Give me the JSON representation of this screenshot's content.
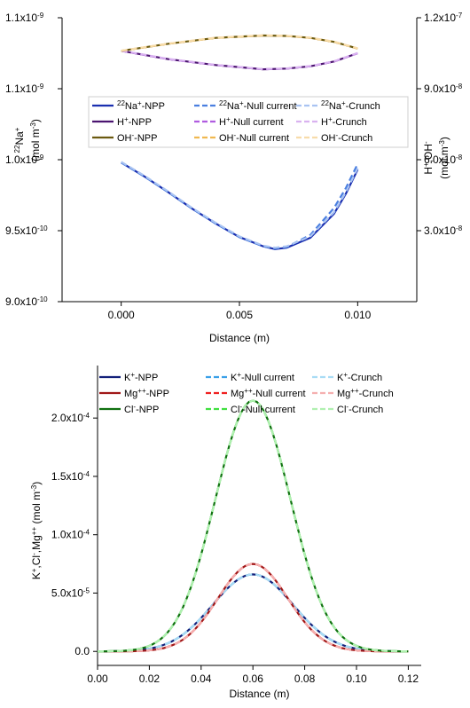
{
  "chart_data": [
    {
      "type": "line",
      "xlabel": "Distance (m)",
      "ylabel_left": [
        "22Na+",
        "(mol m-3)"
      ],
      "ylabel_right": [
        "H+,OH-",
        "(mol m-3)"
      ],
      "xlim": [
        -0.0025,
        0.0125
      ],
      "ylim_left": [
        9e-10,
        1.1e-09
      ],
      "ylim_right": [
        0,
        1.2e-07
      ],
      "x_ticks": [
        0.0,
        0.005,
        0.01
      ],
      "x_tick_labels": [
        "0.000",
        "0.005",
        "0.010"
      ],
      "y_ticks_left": [
        9e-10,
        9.5e-10,
        1e-09,
        1.05e-09,
        1.1e-09
      ],
      "y_tick_labels_left": [
        "9.0x10-10",
        "9.5x10-10",
        "1.0x10-9",
        "1.1x10-9",
        "1.1x10-9"
      ],
      "y_ticks_right": [
        3e-08,
        6e-08,
        9e-08,
        1.2e-07
      ],
      "y_tick_labels_right": [
        "3.0x10-8",
        "6.0x10-8",
        "9.0x10-8",
        "1.2x10-7"
      ],
      "legend_position": "upper-middle",
      "series": [
        {
          "name": "22Na+-NPP",
          "color": "#1a2fb0",
          "style": "solid",
          "axis": "left",
          "x": [
            0,
            0.001,
            0.002,
            0.003,
            0.004,
            0.005,
            0.006,
            0.0065,
            0.007,
            0.008,
            0.009,
            0.0095,
            0.01
          ],
          "y": [
            9.98e-10,
            9.88e-10,
            9.77e-10,
            9.655e-10,
            9.55e-10,
            9.455e-10,
            9.39e-10,
            9.37e-10,
            9.38e-10,
            9.45e-10,
            9.62e-10,
            9.76e-10,
            9.93e-10
          ]
        },
        {
          "name": "22Na+-Null current",
          "color": "#4a7fe0",
          "style": "dashed",
          "axis": "left",
          "x": [
            0,
            0.001,
            0.002,
            0.003,
            0.004,
            0.005,
            0.006,
            0.0065,
            0.007,
            0.008,
            0.009,
            0.0095,
            0.01
          ],
          "y": [
            9.98e-10,
            9.88e-10,
            9.77e-10,
            9.655e-10,
            9.55e-10,
            9.455e-10,
            9.39e-10,
            9.375e-10,
            9.385e-10,
            9.47e-10,
            9.66e-10,
            9.8e-10,
            9.97e-10
          ]
        },
        {
          "name": "22Na+-Crunch",
          "color": "#a9c3f2",
          "style": "dashed",
          "axis": "left",
          "x": [
            0,
            0.001,
            0.002,
            0.003,
            0.004,
            0.005,
            0.006,
            0.0065,
            0.007,
            0.008,
            0.009,
            0.0095,
            0.01
          ],
          "y": [
            9.985e-10,
            9.885e-10,
            9.775e-10,
            9.66e-10,
            9.555e-10,
            9.46e-10,
            9.395e-10,
            9.38e-10,
            9.39e-10,
            9.46e-10,
            9.63e-10,
            9.77e-10,
            9.94e-10
          ]
        },
        {
          "name": "H+-NPP",
          "color": "#4b1470",
          "style": "solid",
          "axis": "right",
          "x": [
            0,
            0.002,
            0.004,
            0.006,
            0.007,
            0.008,
            0.009,
            0.01
          ],
          "y": [
            1.06e-07,
            1.025e-07,
            1e-07,
            9.82e-08,
            9.85e-08,
            9.95e-08,
            1.015e-07,
            1.05e-07
          ]
        },
        {
          "name": "H+-Null current",
          "color": "#b05ce0",
          "style": "dashed",
          "axis": "right",
          "x": [
            0,
            0.002,
            0.004,
            0.006,
            0.007,
            0.008,
            0.009,
            0.01
          ],
          "y": [
            1.06e-07,
            1.025e-07,
            1e-07,
            9.82e-08,
            9.85e-08,
            9.95e-08,
            1.015e-07,
            1.05e-07
          ]
        },
        {
          "name": "H+-Crunch",
          "color": "#d9b2f0",
          "style": "dashed",
          "axis": "right",
          "x": [
            0,
            0.002,
            0.004,
            0.006,
            0.007,
            0.008,
            0.009,
            0.01
          ],
          "y": [
            1.061e-07,
            1.026e-07,
            1.001e-07,
            9.83e-08,
            9.86e-08,
            9.96e-08,
            1.016e-07,
            1.051e-07
          ]
        },
        {
          "name": "OH--NPP",
          "color": "#6b5a10",
          "style": "solid",
          "axis": "right",
          "x": [
            0,
            0.002,
            0.004,
            0.006,
            0.007,
            0.008,
            0.009,
            0.01
          ],
          "y": [
            1.06e-07,
            1.09e-07,
            1.115e-07,
            1.125e-07,
            1.123e-07,
            1.115e-07,
            1.098e-07,
            1.07e-07
          ]
        },
        {
          "name": "OH--Null current",
          "color": "#f0b850",
          "style": "dashed",
          "axis": "right",
          "x": [
            0,
            0.002,
            0.004,
            0.006,
            0.007,
            0.008,
            0.009,
            0.01
          ],
          "y": [
            1.06e-07,
            1.09e-07,
            1.115e-07,
            1.125e-07,
            1.123e-07,
            1.115e-07,
            1.098e-07,
            1.07e-07
          ]
        },
        {
          "name": "OH--Crunch",
          "color": "#f7dcaa",
          "style": "dashed",
          "axis": "right",
          "x": [
            0,
            0.002,
            0.004,
            0.006,
            0.007,
            0.008,
            0.009,
            0.01
          ],
          "y": [
            1.061e-07,
            1.091e-07,
            1.116e-07,
            1.126e-07,
            1.124e-07,
            1.116e-07,
            1.099e-07,
            1.071e-07
          ]
        }
      ]
    },
    {
      "type": "line",
      "xlabel": "Distance (m)",
      "ylabel": "K+,Cl-,Mg++ (mol m-3)",
      "xlim": [
        0,
        0.125
      ],
      "ylim": [
        -1.2e-05,
        0.000245
      ],
      "x_ticks": [
        0,
        0.02,
        0.04,
        0.06,
        0.08,
        0.1,
        0.12
      ],
      "x_tick_labels": [
        "0.00",
        "0.02",
        "0.04",
        "0.06",
        "0.08",
        "0.10",
        "0.12"
      ],
      "y_ticks": [
        0,
        5e-05,
        0.0001,
        0.00015,
        0.0002
      ],
      "y_tick_labels": [
        "0.0",
        "5.0x10-5",
        "1.0x10-4",
        "1.5x10-4",
        "2.0x10-4"
      ],
      "legend_position": "top",
      "series": [
        {
          "name": "K+-NPP",
          "color": "#13207a",
          "style": "solid",
          "peak": 6.6e-05,
          "center": 0.06,
          "width": 0.0155
        },
        {
          "name": "K+-Null current",
          "color": "#3aa0e8",
          "style": "dashed",
          "peak": 6.6e-05,
          "center": 0.06,
          "width": 0.0155
        },
        {
          "name": "K+-Crunch",
          "color": "#a8dcf5",
          "style": "dashed",
          "peak": 6.6e-05,
          "center": 0.06,
          "width": 0.0155
        },
        {
          "name": "Mg++-NPP",
          "color": "#a01818",
          "style": "solid",
          "peak": 7.5e-05,
          "center": 0.06,
          "width": 0.0135
        },
        {
          "name": "Mg++-Null current",
          "color": "#f02020",
          "style": "dashed",
          "peak": 7.5e-05,
          "center": 0.06,
          "width": 0.0135
        },
        {
          "name": "Mg++-Crunch",
          "color": "#f5b0b0",
          "style": "dashed",
          "peak": 7.5e-05,
          "center": 0.06,
          "width": 0.0135
        },
        {
          "name": "Cl--NPP",
          "color": "#107010",
          "style": "solid",
          "peak": 0.000215,
          "center": 0.06,
          "width": 0.0145
        },
        {
          "name": "Cl--Null current",
          "color": "#40e040",
          "style": "dashed",
          "peak": 0.000215,
          "center": 0.06,
          "width": 0.0145
        },
        {
          "name": "Cl--Crunch",
          "color": "#b0f0b0",
          "style": "dashed",
          "peak": 0.000215,
          "center": 0.06,
          "width": 0.0145
        }
      ]
    }
  ],
  "legend1": [
    [
      "22Na+-NPP",
      "22Na+-Null current",
      "22Na+-Crunch"
    ],
    [
      "H+-NPP",
      "H+-Null current",
      "H+-Crunch"
    ],
    [
      "OH--NPP",
      "OH--Null current",
      "OH--Crunch"
    ]
  ],
  "legend2": [
    [
      "K+-NPP",
      "K+-Null current",
      "K+-Crunch"
    ],
    [
      "Mg++-NPP",
      "Mg++-Null current",
      "Mg++-Crunch"
    ],
    [
      "Cl--NPP",
      "Cl--Null current",
      "Cl--Crunch"
    ]
  ]
}
